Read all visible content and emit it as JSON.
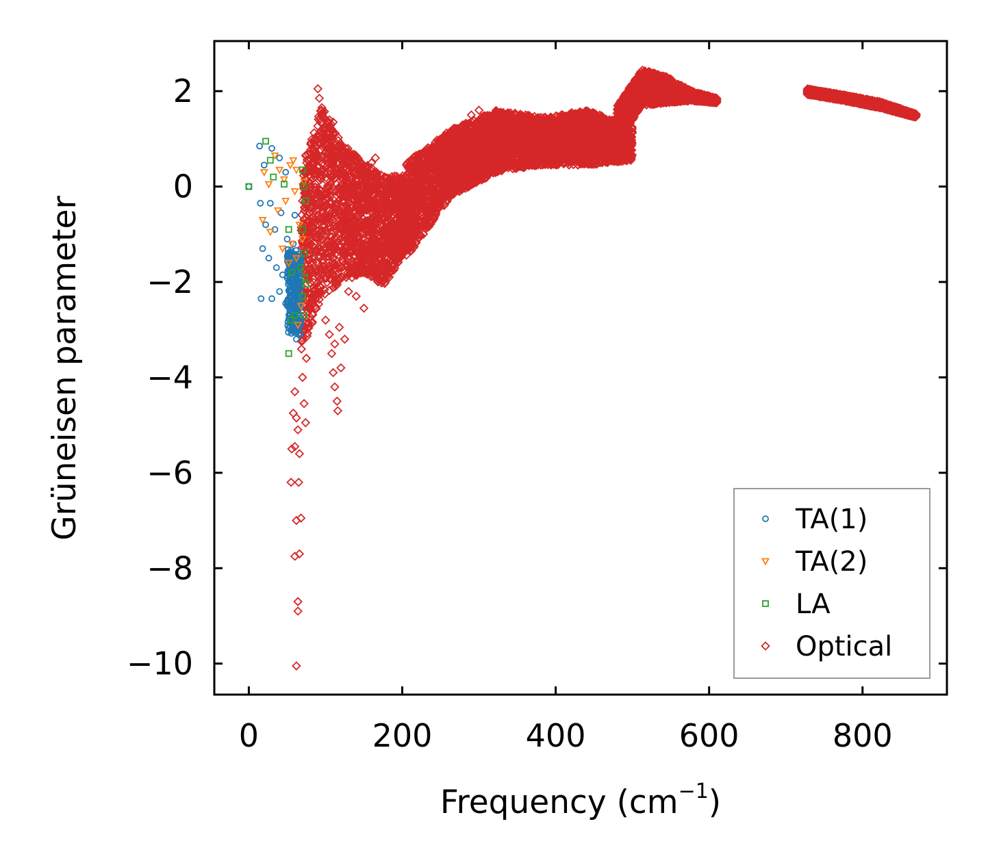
{
  "chart_data": {
    "type": "scatter",
    "title": "",
    "xlabel": "Frequency (cm",
    "xlabel_sup": "−1",
    "xlabel_close": ")",
    "ylabel": "Grüneisen parameter",
    "xlim": [
      -45,
      910
    ],
    "ylim": [
      -10.65,
      3.05
    ],
    "xticks": [
      0,
      200,
      400,
      600,
      800
    ],
    "xtick_labels": [
      "0",
      "200",
      "400",
      "600",
      "800"
    ],
    "yticks": [
      2,
      0,
      -2,
      -4,
      -6,
      -8,
      -10
    ],
    "ytick_labels": [
      "2",
      "0",
      "−2",
      "−4",
      "−6",
      "−8",
      "−10"
    ],
    "legend_position": "lower-right",
    "series": [
      {
        "name": "TA(1)",
        "marker": "circle",
        "color": "#1f77b4",
        "points": [
          [
            0,
            0
          ],
          [
            14,
            0.85
          ],
          [
            20,
            0.45
          ],
          [
            30,
            0.8
          ],
          [
            40,
            0.6
          ],
          [
            48,
            0.3
          ],
          [
            15,
            -0.35
          ],
          [
            22,
            -0.8
          ],
          [
            28,
            -0.35
          ],
          [
            34,
            -0.9
          ],
          [
            42,
            -0.55
          ],
          [
            50,
            -1.1
          ],
          [
            18,
            -1.3
          ],
          [
            26,
            -1.5
          ],
          [
            36,
            -1.7
          ],
          [
            44,
            -1.85
          ],
          [
            52,
            -2.0
          ],
          [
            16,
            -2.35
          ],
          [
            30,
            -2.35
          ],
          [
            40,
            -2.2
          ],
          [
            48,
            -2.45
          ],
          [
            55,
            -1.4
          ],
          [
            58,
            -2.6
          ],
          [
            60,
            -2.9
          ],
          [
            62,
            -3.2
          ],
          [
            56,
            -1.9
          ],
          [
            60,
            -0.6
          ],
          [
            64,
            -2.2
          ],
          [
            58,
            -1.2
          ],
          [
            63,
            -3.0
          ],
          [
            54,
            -2.7
          ],
          [
            66,
            -1.6
          ]
        ],
        "band": {
          "x": [
            50,
            68
          ],
          "y": [
            -3.1,
            -1.3
          ]
        }
      },
      {
        "name": "TA(2)",
        "marker": "triangle-down",
        "color": "#ff7f0e",
        "points": [
          [
            20,
            0.3
          ],
          [
            26,
            0.05
          ],
          [
            34,
            0.65
          ],
          [
            40,
            0.35
          ],
          [
            46,
            0.15
          ],
          [
            18,
            -0.7
          ],
          [
            28,
            -0.95
          ],
          [
            38,
            -0.5
          ],
          [
            48,
            -0.3
          ],
          [
            54,
            0.45
          ],
          [
            58,
            0.55
          ],
          [
            62,
            0.35
          ],
          [
            56,
            -1.2
          ],
          [
            62,
            -1.5
          ],
          [
            66,
            -0.8
          ],
          [
            68,
            -2.5
          ],
          [
            64,
            -2.9
          ],
          [
            70,
            -1.1
          ],
          [
            72,
            0.1
          ],
          [
            52,
            -1.6
          ],
          [
            60,
            -0.1
          ],
          [
            44,
            -1.3
          ]
        ]
      },
      {
        "name": "LA",
        "marker": "square",
        "color": "#2ca02c",
        "points": [
          [
            0,
            0
          ],
          [
            22,
            0.95
          ],
          [
            28,
            0.55
          ],
          [
            32,
            0.2
          ],
          [
            46,
            0.05
          ],
          [
            52,
            -0.9
          ],
          [
            56,
            -1.8
          ],
          [
            60,
            -2.7
          ],
          [
            55,
            -2.8
          ],
          [
            52,
            -3.5
          ],
          [
            70,
            0.35
          ],
          [
            72,
            0.0
          ],
          [
            70,
            -0.9
          ],
          [
            72,
            -1.4
          ],
          [
            73,
            -1.9
          ],
          [
            70,
            -2.3
          ],
          [
            72,
            -2.7
          ],
          [
            74,
            -0.3
          ],
          [
            68,
            -1.7
          ],
          [
            74,
            -2.05
          ]
        ]
      },
      {
        "name": "Optical",
        "marker": "diamond",
        "color": "#d62728",
        "points": [
          [
            90,
            2.05
          ],
          [
            92,
            1.85
          ],
          [
            95,
            1.6
          ],
          [
            100,
            1.2
          ],
          [
            110,
            1.35
          ],
          [
            60,
            -4.3
          ],
          [
            58,
            -4.75
          ],
          [
            62,
            -4.85
          ],
          [
            64,
            -5.1
          ],
          [
            56,
            -5.5
          ],
          [
            60,
            -5.45
          ],
          [
            66,
            -5.6
          ],
          [
            55,
            -6.2
          ],
          [
            65,
            -6.2
          ],
          [
            62,
            -7.0
          ],
          [
            68,
            -6.95
          ],
          [
            60,
            -7.75
          ],
          [
            66,
            -7.7
          ],
          [
            64,
            -8.7
          ],
          [
            64,
            -8.9
          ],
          [
            62,
            -10.05
          ],
          [
            70,
            -4.0
          ],
          [
            75,
            -3.6
          ],
          [
            72,
            -4.55
          ],
          [
            74,
            -4.95
          ],
          [
            100,
            -2.8
          ],
          [
            105,
            -3.1
          ],
          [
            108,
            -3.5
          ],
          [
            110,
            -3.9
          ],
          [
            112,
            -4.2
          ],
          [
            115,
            -4.5
          ],
          [
            116,
            -4.7
          ],
          [
            120,
            -3.8
          ],
          [
            112,
            -3.3
          ],
          [
            125,
            -3.2
          ],
          [
            118,
            -2.95
          ],
          [
            150,
            -2.55
          ],
          [
            140,
            -2.3
          ],
          [
            130,
            -2.2
          ],
          [
            160,
            0.5
          ],
          [
            165,
            0.6
          ],
          [
            140,
            0.3
          ],
          [
            300,
            1.6
          ],
          [
            290,
            1.5
          ],
          [
            320,
            1.45
          ],
          [
            605,
            1.8
          ],
          [
            590,
            1.85
          ],
          [
            270,
            0.05
          ],
          [
            150,
            0.25
          ]
        ],
        "bands": [
          {
            "x": [
              68,
              205
            ],
            "y_top": [
              0.4,
              1.7,
              0.9,
              0.5,
              0.2,
              0.25
            ],
            "y_bottom": [
              -3.5,
              -2.3,
              -2.0,
              -1.8,
              -2.1,
              -1.3
            ]
          },
          {
            "x": [
              205,
              500
            ],
            "y_top": [
              0.5,
              1.2,
              1.6,
              1.45,
              1.6,
              1.25
            ],
            "y_bottom": [
              -1.5,
              -0.2,
              0.3,
              0.45,
              0.45,
              0.55
            ]
          },
          {
            "x": [
              480,
              610
            ],
            "y_top": [
              1.7,
              2.45,
              2.3,
              2.0,
              1.85
            ],
            "y_bottom": [
              0.9,
              1.7,
              1.75,
              1.8,
              1.75
            ]
          },
          {
            "x": [
              728,
              870
            ],
            "y_top": [
              2.05,
              1.92,
              1.78,
              1.52
            ],
            "y_bottom": [
              1.93,
              1.8,
              1.65,
              1.45
            ]
          }
        ]
      }
    ]
  }
}
